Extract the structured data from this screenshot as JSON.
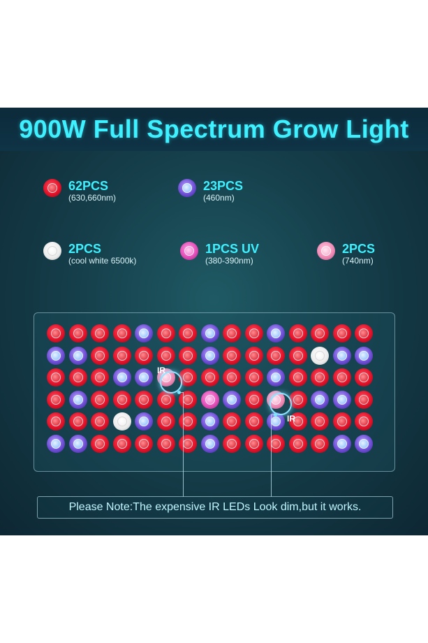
{
  "title": "900W Full Spectrum Grow Light",
  "legend": [
    {
      "type": "red",
      "count": "62PCS",
      "wavelength": "(630,660nm)"
    },
    {
      "type": "blue",
      "count": "23PCS",
      "wavelength": "(460nm)"
    },
    {
      "type": "white",
      "count": "2PCS",
      "wavelength": "(cool white 6500k)"
    },
    {
      "type": "uv",
      "count": "1PCS UV",
      "wavelength": "(380-390nm)"
    },
    {
      "type": "ir",
      "count": "2PCS",
      "wavelength": "(740nm)"
    }
  ],
  "led_grid": [
    [
      "red",
      "red",
      "red",
      "red",
      "blue",
      "red",
      "red",
      "blue",
      "red",
      "red",
      "blue",
      "red",
      "red",
      "red",
      "red"
    ],
    [
      "blue",
      "blue",
      "red",
      "red",
      "red",
      "red",
      "red",
      "blue",
      "red",
      "red",
      "red",
      "red",
      "white",
      "blue",
      "blue"
    ],
    [
      "red",
      "red",
      "red",
      "blue",
      "blue",
      "ir",
      "red",
      "red",
      "red",
      "red",
      "blue",
      "red",
      "red",
      "red",
      "red"
    ],
    [
      "red",
      "blue",
      "red",
      "red",
      "red",
      "red",
      "red",
      "uv",
      "blue",
      "red",
      "ir",
      "red",
      "blue",
      "blue",
      "red"
    ],
    [
      "red",
      "red",
      "red",
      "white",
      "blue",
      "red",
      "red",
      "blue",
      "red",
      "red",
      "blue",
      "red",
      "red",
      "red",
      "red"
    ],
    [
      "blue",
      "blue",
      "red",
      "red",
      "red",
      "red",
      "red",
      "blue",
      "red",
      "red",
      "red",
      "red",
      "red",
      "blue",
      "blue"
    ]
  ],
  "ir_label": "IR",
  "note": "Please Note:The expensive IR LEDs Look dim,but it works."
}
